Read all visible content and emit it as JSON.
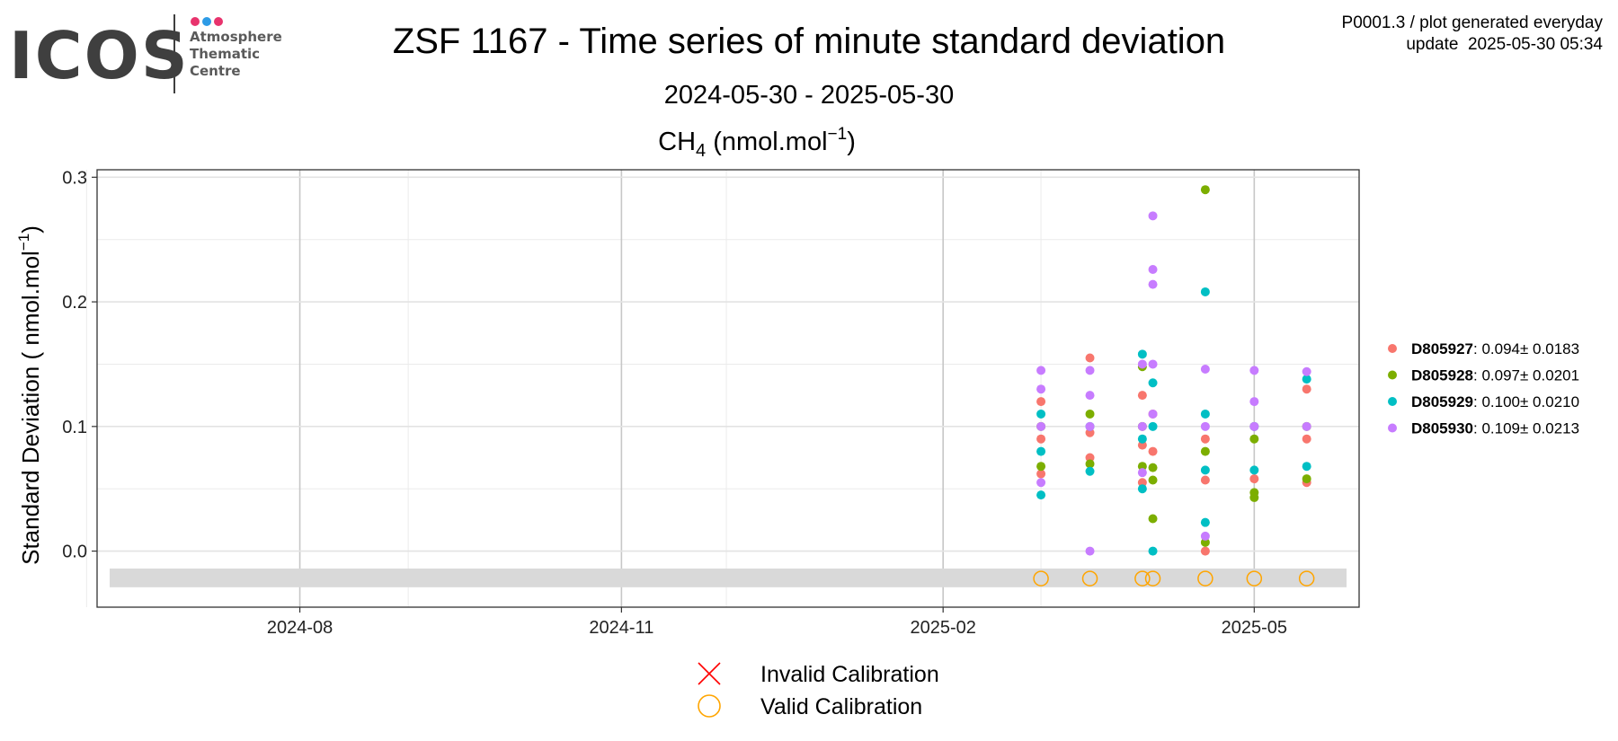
{
  "logo": {
    "text": "ICOS",
    "subtitle": "Atmosphere\nThematic\nCentre",
    "dot_colors": [
      "#e8336d",
      "#2d9be6",
      "#e8336d"
    ]
  },
  "header": {
    "title": "ZSF 1167 - Time series of minute standard deviation",
    "date_range": "2024-05-30 - 2025-05-30",
    "meta_line1": "P0001.3 / plot generated everyday",
    "meta_line2": "update  2025-05-30 05:34"
  },
  "chart_data": {
    "type": "scatter",
    "title": "CH4 (nmol.mol-1)",
    "ylabel": "Standard Deviation ( nmol.mol-1)",
    "xlabel": "",
    "x_type": "date",
    "xlim": [
      "2024-06-04",
      "2025-05-31"
    ],
    "ylim": [
      -0.045,
      0.306
    ],
    "x_ticks": [
      "2024-08",
      "2024-11",
      "2025-02",
      "2025-05"
    ],
    "x_tick_dates": [
      "2024-08-01",
      "2024-11-01",
      "2025-02-01",
      "2025-05-01"
    ],
    "y_ticks": [
      0.0,
      0.1,
      0.2,
      0.3
    ],
    "y_tick_labels": [
      "0.0",
      "0.1",
      "0.2",
      "0.3"
    ],
    "grid": true,
    "legend_position": "right",
    "calibration_band": [
      -0.029,
      -0.014
    ],
    "series": [
      {
        "name": "D805927",
        "stat": ": 0.094± 0.0183",
        "color": "#f8766d",
        "points": [
          [
            "2025-03-01",
            0.062
          ],
          [
            "2025-03-01",
            0.09
          ],
          [
            "2025-03-01",
            0.12
          ],
          [
            "2025-03-15",
            0.155
          ],
          [
            "2025-03-15",
            0.095
          ],
          [
            "2025-03-15",
            0.075
          ],
          [
            "2025-03-30",
            0.055
          ],
          [
            "2025-03-30",
            0.125
          ],
          [
            "2025-03-30",
            0.085
          ],
          [
            "2025-04-02",
            0.08
          ],
          [
            "2025-04-02",
            0.11
          ],
          [
            "2025-04-17",
            0.0
          ],
          [
            "2025-04-17",
            0.057
          ],
          [
            "2025-04-17",
            0.09
          ],
          [
            "2025-05-01",
            0.058
          ],
          [
            "2025-05-01",
            0.1
          ],
          [
            "2025-05-16",
            0.055
          ],
          [
            "2025-05-16",
            0.09
          ],
          [
            "2025-05-16",
            0.13
          ]
        ]
      },
      {
        "name": "D805928",
        "stat": ": 0.097± 0.0201",
        "color": "#7cae00",
        "points": [
          [
            "2025-03-01",
            0.068
          ],
          [
            "2025-03-01",
            0.1
          ],
          [
            "2025-03-15",
            0.07
          ],
          [
            "2025-03-15",
            0.11
          ],
          [
            "2025-03-30",
            0.068
          ],
          [
            "2025-03-30",
            0.148
          ],
          [
            "2025-03-30",
            0.1
          ],
          [
            "2025-04-02",
            0.057
          ],
          [
            "2025-04-02",
            0.026
          ],
          [
            "2025-04-02",
            0.067
          ],
          [
            "2025-04-17",
            0.29
          ],
          [
            "2025-04-17",
            0.007
          ],
          [
            "2025-04-17",
            0.08
          ],
          [
            "2025-05-01",
            0.043
          ],
          [
            "2025-05-01",
            0.047
          ],
          [
            "2025-05-01",
            0.09
          ],
          [
            "2025-05-16",
            0.058
          ],
          [
            "2025-05-16",
            0.1
          ]
        ]
      },
      {
        "name": "D805929",
        "stat": ": 0.100± 0.0210",
        "color": "#00bfc4",
        "points": [
          [
            "2025-03-01",
            0.045
          ],
          [
            "2025-03-01",
            0.08
          ],
          [
            "2025-03-01",
            0.11
          ],
          [
            "2025-03-15",
            0.064
          ],
          [
            "2025-03-15",
            0.1
          ],
          [
            "2025-03-30",
            0.158
          ],
          [
            "2025-03-30",
            0.05
          ],
          [
            "2025-03-30",
            0.09
          ],
          [
            "2025-04-02",
            0.0
          ],
          [
            "2025-04-02",
            0.135
          ],
          [
            "2025-04-02",
            0.1
          ],
          [
            "2025-04-17",
            0.208
          ],
          [
            "2025-04-17",
            0.023
          ],
          [
            "2025-04-17",
            0.065
          ],
          [
            "2025-04-17",
            0.11
          ],
          [
            "2025-05-01",
            0.065
          ],
          [
            "2025-05-01",
            0.1
          ],
          [
            "2025-05-16",
            0.068
          ],
          [
            "2025-05-16",
            0.138
          ]
        ]
      },
      {
        "name": "D805930",
        "stat": ": 0.109± 0.0213",
        "color": "#c77cff",
        "points": [
          [
            "2025-03-01",
            0.055
          ],
          [
            "2025-03-01",
            0.145
          ],
          [
            "2025-03-01",
            0.1
          ],
          [
            "2025-03-01",
            0.13
          ],
          [
            "2025-03-15",
            0.0
          ],
          [
            "2025-03-15",
            0.145
          ],
          [
            "2025-03-15",
            0.1
          ],
          [
            "2025-03-15",
            0.125
          ],
          [
            "2025-03-30",
            0.15
          ],
          [
            "2025-03-30",
            0.063
          ],
          [
            "2025-03-30",
            0.1
          ],
          [
            "2025-04-02",
            0.269
          ],
          [
            "2025-04-02",
            0.226
          ],
          [
            "2025-04-02",
            0.214
          ],
          [
            "2025-04-02",
            0.15
          ],
          [
            "2025-04-02",
            0.11
          ],
          [
            "2025-04-17",
            0.012
          ],
          [
            "2025-04-17",
            0.146
          ],
          [
            "2025-04-17",
            0.1
          ],
          [
            "2025-05-01",
            0.145
          ],
          [
            "2025-05-01",
            0.1
          ],
          [
            "2025-05-01",
            0.12
          ],
          [
            "2025-05-16",
            0.144
          ],
          [
            "2025-05-16",
            0.1
          ]
        ]
      }
    ],
    "valid_calibrations": [
      [
        "2025-03-01",
        -0.022
      ],
      [
        "2025-03-15",
        -0.022
      ],
      [
        "2025-03-30",
        -0.022
      ],
      [
        "2025-04-02",
        -0.022
      ],
      [
        "2025-04-17",
        -0.022
      ],
      [
        "2025-05-01",
        -0.022
      ],
      [
        "2025-05-16",
        -0.022
      ]
    ],
    "calibration_legend": [
      {
        "label": "Invalid Calibration",
        "color": "#ff0000"
      },
      {
        "label": "Valid Calibration",
        "color": "#ffa500"
      }
    ]
  }
}
